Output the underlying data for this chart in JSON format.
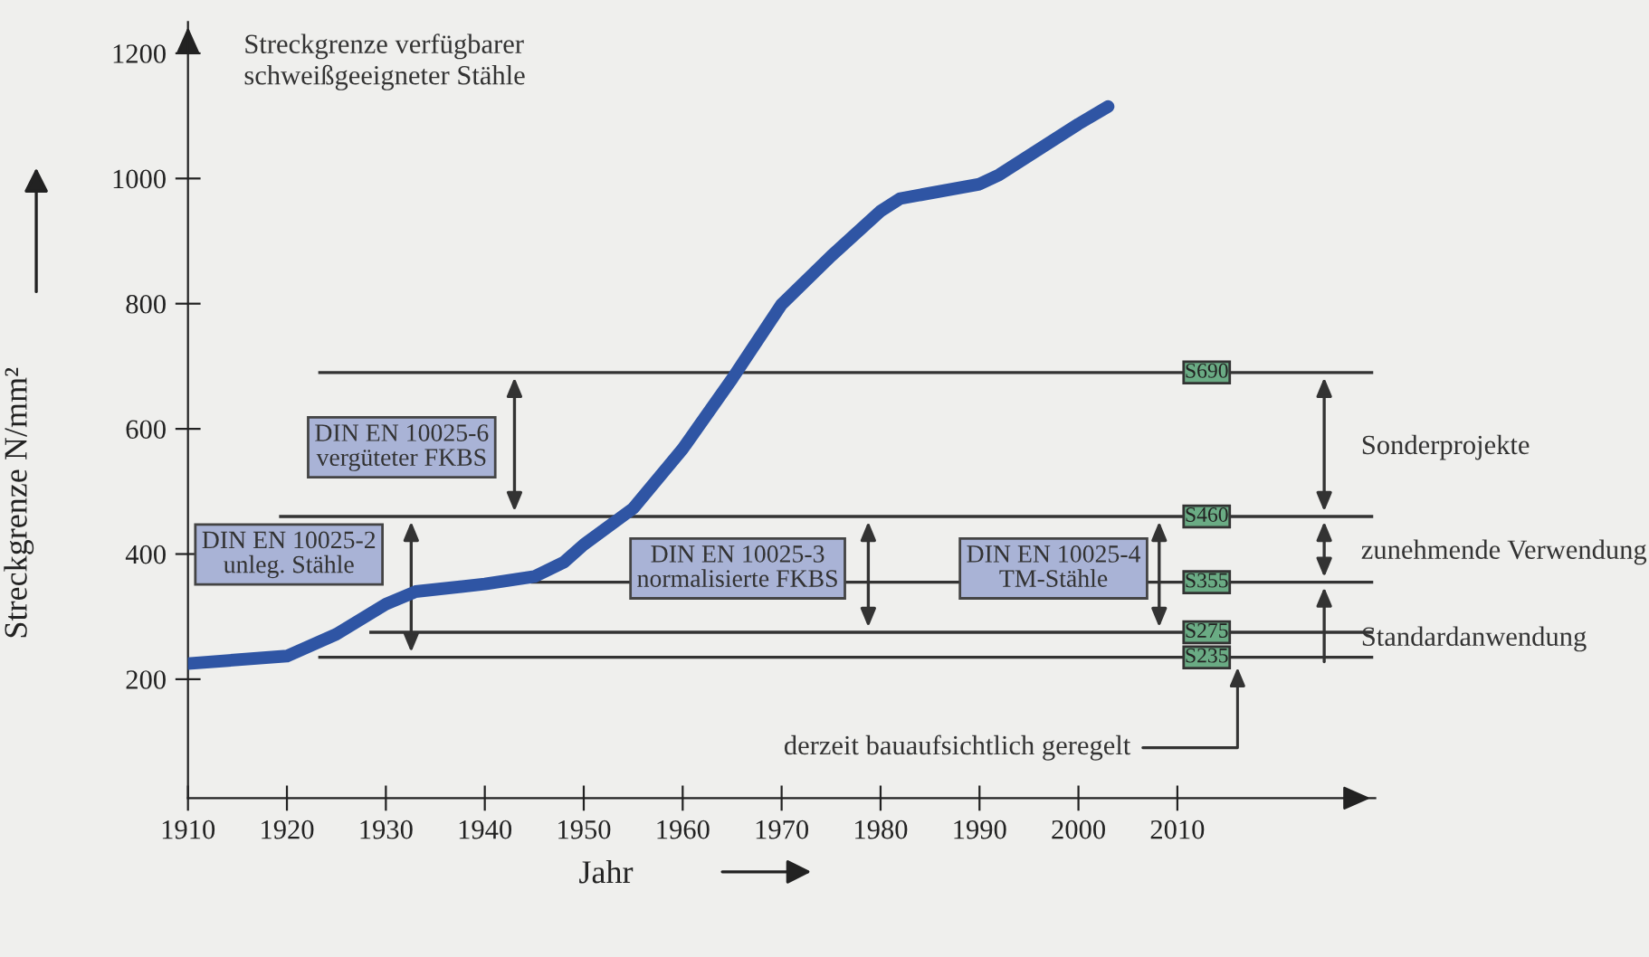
{
  "chart_data": {
    "type": "line",
    "title": "Streckgrenze verfügbarer\nschweißgeeigneter Stähle",
    "xlabel": "Jahr",
    "ylabel": "Streckgrenze N/mm²",
    "x": [
      1910,
      1920,
      1925,
      1930,
      1933,
      1940,
      1945,
      1948,
      1950,
      1955,
      1960,
      1965,
      1970,
      1975,
      1980,
      1982,
      1990,
      1992,
      2000,
      2003
    ],
    "series": [
      {
        "color": "#2f55a4",
        "values": [
          225,
          237,
          272,
          320,
          340,
          352,
          364,
          387,
          415,
          473,
          568,
          680,
          799,
          876,
          948,
          968,
          991,
          1006,
          1087,
          1115
        ]
      }
    ],
    "xlim": [
      1910,
      2030
    ],
    "xticks": [
      1910,
      1920,
      1930,
      1940,
      1950,
      1960,
      1970,
      1980,
      1990,
      2000,
      2010
    ],
    "ylim": [
      10,
      1250
    ],
    "yticks": [
      200,
      400,
      600,
      800,
      1000,
      1200
    ],
    "grid": false,
    "marker": "none",
    "line_style": "solid",
    "ref_lines": [
      {
        "axis": "y",
        "value": 690,
        "label": "S690",
        "color": "#333333"
      },
      {
        "axis": "y",
        "value": 460,
        "label": "S460",
        "color": "#333333"
      },
      {
        "axis": "y",
        "value": 355,
        "label": "S355",
        "color": "#333333"
      },
      {
        "axis": "y",
        "value": 275,
        "label": "S275",
        "color": "#333333"
      },
      {
        "axis": "y",
        "value": 235,
        "label": "S235",
        "color": "#333333"
      }
    ],
    "annotations": [
      "DIN EN 10025-6\nvergüteter FKBS",
      "DIN EN 10025-2\nunleg. Stähle",
      "DIN EN 10025-3\nnormalisierte FKBS",
      "DIN EN 10025-4\nTM-Stähle",
      "Sonderprojekte",
      "zunehmende Verwendung",
      "Standardanwendung",
      "derzeit bauaufsichtlich geregelt"
    ]
  }
}
